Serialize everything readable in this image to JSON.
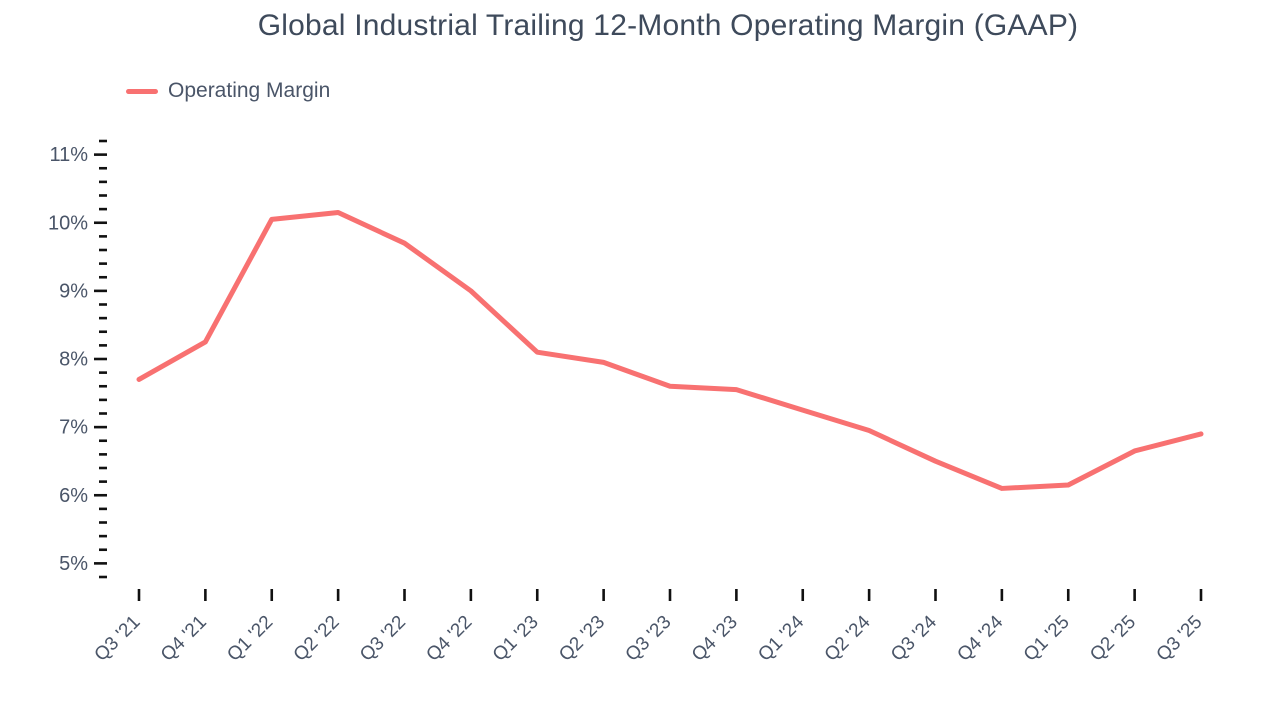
{
  "colors": {
    "background": "#FFFFFF",
    "line": "#F87171",
    "title_text": "#3E4A5B",
    "axis_label_text": "#4A5568",
    "tick": "#111111"
  },
  "legend": {
    "items": [
      {
        "label": "Operating Margin",
        "swatch": "line-swatch"
      }
    ]
  },
  "chart_data": {
    "type": "line",
    "title": "Global Industrial Trailing 12-Month Operating Margin (GAAP)",
    "categories": [
      "Q3 '21",
      "Q4 '21",
      "Q1 '22",
      "Q2 '22",
      "Q3 '22",
      "Q4 '22",
      "Q1 '23",
      "Q2 '23",
      "Q3 '23",
      "Q4 '23",
      "Q1 '24",
      "Q2 '24",
      "Q3 '24",
      "Q4 '24",
      "Q1 '25",
      "Q2 '25",
      "Q3 '25"
    ],
    "series": [
      {
        "name": "Operating Margin",
        "color": "#F87171",
        "values": [
          7.7,
          8.25,
          10.05,
          10.15,
          9.7,
          9.0,
          8.1,
          7.95,
          7.6,
          7.55,
          7.25,
          6.95,
          6.5,
          6.1,
          6.15,
          6.65,
          6.9
        ]
      }
    ],
    "unit": "%",
    "ylim": [
      4.8,
      11.2
    ],
    "y_major_step": 1,
    "y_minor_step": 0.2,
    "y_major_labels": [
      "5%",
      "6%",
      "7%",
      "8%",
      "9%",
      "10%",
      "11%"
    ],
    "xlabel": "",
    "ylabel": "",
    "grid": false,
    "legend_position": "top-left",
    "x_tick_label_rotation_deg": -45
  }
}
